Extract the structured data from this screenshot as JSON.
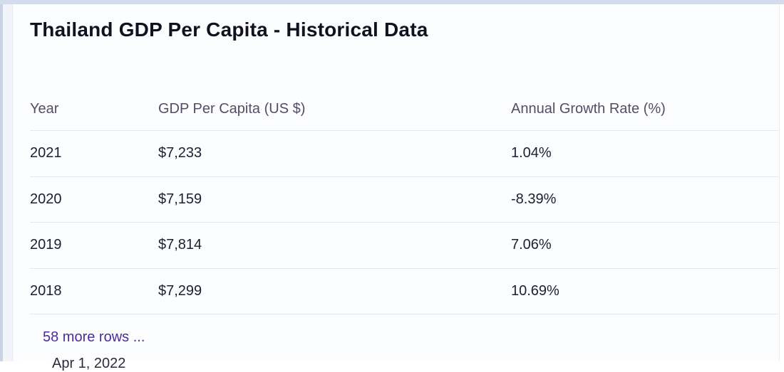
{
  "page": {
    "title": "Thailand GDP Per Capita - Historical Data",
    "more_rows_label": "58 more rows ...",
    "footer_cutoff_text": "Apr 1, 2022"
  },
  "table": {
    "columns": [
      "Year",
      "GDP Per Capita (US $)",
      "Annual Growth Rate (%)"
    ],
    "rows": [
      {
        "year": "2021",
        "gdp_per_capita": "$7,233",
        "annual_growth_rate": "1.04%"
      },
      {
        "year": "2020",
        "gdp_per_capita": "$7,159",
        "annual_growth_rate": "-8.39%"
      },
      {
        "year": "2019",
        "gdp_per_capita": "$7,814",
        "annual_growth_rate": "7.06%"
      },
      {
        "year": "2018",
        "gdp_per_capita": "$7,299",
        "annual_growth_rate": "10.69%"
      }
    ]
  },
  "colors": {
    "title_text": "#12121f",
    "header_text": "#564c63",
    "cell_text": "#1f1e30",
    "link_purple": "#4b2b9e",
    "separator": "#e5e7eb",
    "top_strip": "#d2dcec",
    "left_rail": "#f1f4f9",
    "left_rail_edge": "#c8d3e5",
    "card_background": "#fcfdfe"
  }
}
